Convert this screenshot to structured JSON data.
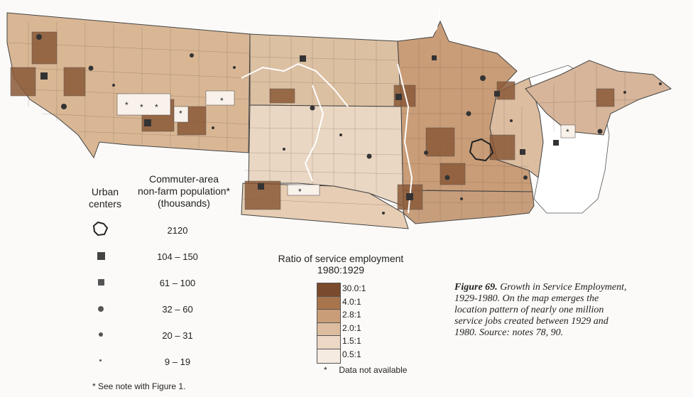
{
  "legend": {
    "urban_title": "Urban centers",
    "urban_title_l1": "Urban",
    "urban_title_l2": "centers",
    "population_title_l1": "Commuter-area",
    "population_title_l2": "non-farm population*",
    "population_title_l3": "(thousands)",
    "population_classes": [
      "2120",
      "104 – 150",
      "61 – 100",
      "32 – 60",
      "20 – 31",
      "9 – 19"
    ],
    "ratio_title_l1": "Ratio of service employment",
    "ratio_title_l2": "1980:1929",
    "ratio_classes": [
      "30.0:1",
      "4.0:1",
      "2.8:1",
      "2.0:1",
      "1.5:1",
      "0.5:1"
    ],
    "ratio_colors": [
      "#7a4a2c",
      "#a9754d",
      "#c99d78",
      "#dcbda0",
      "#ecd8c5",
      "#f6ebe1"
    ],
    "not_available": "Data not available",
    "asterisk": "*",
    "footnote": "* See note with Figure 1."
  },
  "caption": {
    "figure": "Figure 69.",
    "text": "Growth in Service Employment, 1929-1980. On the map emerges the location pattern of nearly one million service jobs created between 1929 and 1980. Source: notes 78, 90."
  }
}
